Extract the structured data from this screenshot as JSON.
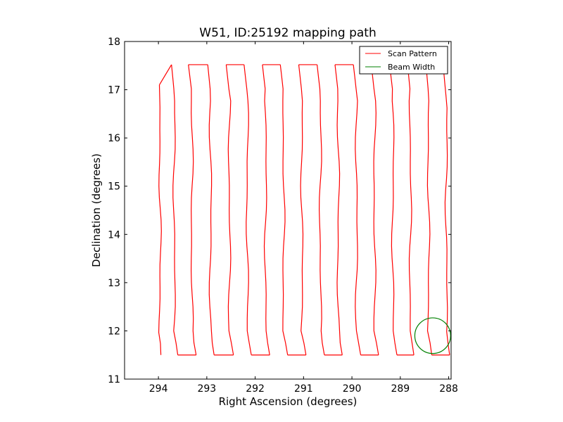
{
  "chart_data": {
    "type": "line",
    "title": "W51, ID:25192 mapping path",
    "xlabel": "Right Ascension (degrees)",
    "ylabel": "Declination (degrees)",
    "xlim": [
      294.7,
      287.95
    ],
    "ylim": [
      11,
      18
    ],
    "x_reversed": true,
    "xticks": [
      294,
      293,
      292,
      291,
      290,
      289,
      288
    ],
    "yticks": [
      11,
      12,
      13,
      14,
      15,
      16,
      17,
      18
    ],
    "grid": false,
    "legend_position": "top-right",
    "series": [
      {
        "name": "Scan Pattern",
        "color": "#ff0000",
        "scan_columns": [
          {
            "x_bottom": 293.95,
            "x_top": 293.98,
            "y_bottom": 11.5,
            "y_top": 17.1
          },
          {
            "x_bottom": 293.6,
            "x_top": 293.73,
            "y_bottom": 11.5,
            "y_top": 17.52
          },
          {
            "x_bottom": 293.22,
            "x_top": 293.38,
            "y_bottom": 11.5,
            "y_top": 17.52
          },
          {
            "x_bottom": 292.85,
            "x_top": 292.98,
            "y_bottom": 11.5,
            "y_top": 17.52
          },
          {
            "x_bottom": 292.45,
            "x_top": 292.6,
            "y_bottom": 11.5,
            "y_top": 17.52
          },
          {
            "x_bottom": 292.08,
            "x_top": 292.23,
            "y_bottom": 11.5,
            "y_top": 17.52
          },
          {
            "x_bottom": 291.7,
            "x_top": 291.85,
            "y_bottom": 11.5,
            "y_top": 17.52
          },
          {
            "x_bottom": 291.33,
            "x_top": 291.48,
            "y_bottom": 11.5,
            "y_top": 17.52
          },
          {
            "x_bottom": 290.95,
            "x_top": 291.1,
            "y_bottom": 11.5,
            "y_top": 17.52
          },
          {
            "x_bottom": 290.57,
            "x_top": 290.72,
            "y_bottom": 11.5,
            "y_top": 17.52
          },
          {
            "x_bottom": 290.2,
            "x_top": 290.35,
            "y_bottom": 11.5,
            "y_top": 17.52
          },
          {
            "x_bottom": 289.82,
            "x_top": 289.97,
            "y_bottom": 11.5,
            "y_top": 17.52
          },
          {
            "x_bottom": 289.45,
            "x_top": 289.6,
            "y_bottom": 11.5,
            "y_top": 17.52
          },
          {
            "x_bottom": 289.07,
            "x_top": 289.22,
            "y_bottom": 11.5,
            "y_top": 17.52
          },
          {
            "x_bottom": 288.72,
            "x_top": 288.85,
            "y_bottom": 11.5,
            "y_top": 17.52
          },
          {
            "x_bottom": 288.35,
            "x_top": 288.47,
            "y_bottom": 11.5,
            "y_top": 17.52
          },
          {
            "x_bottom": 287.98,
            "x_top": 288.1,
            "y_bottom": 11.5,
            "y_top": 17.35
          }
        ]
      },
      {
        "name": "Beam Width",
        "color": "#008000",
        "shape": "circle",
        "center": [
          288.33,
          11.9
        ],
        "radius_deg": 0.37
      }
    ],
    "legend_entries": [
      "Scan Pattern",
      "Beam Width"
    ]
  }
}
